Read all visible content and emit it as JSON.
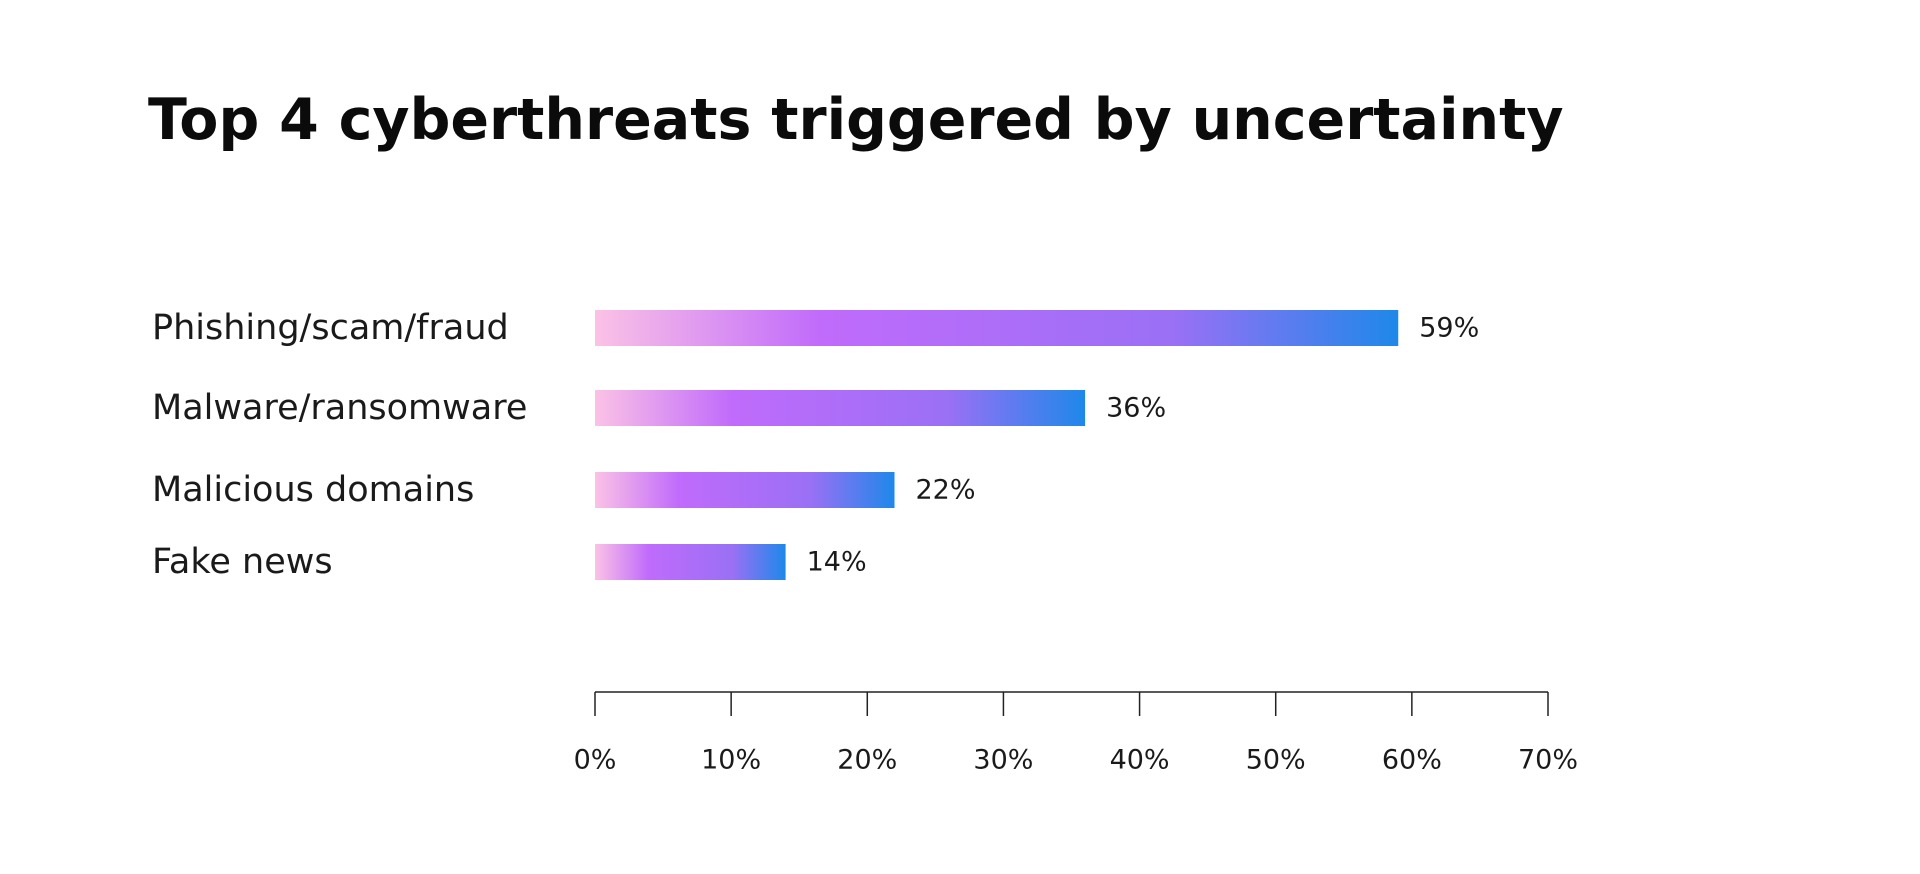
{
  "chart_data": {
    "type": "bar",
    "orientation": "horizontal",
    "title": "Top 4 cyberthreats triggered by uncertainty",
    "categories": [
      "Phishing/scam/fraud",
      "Malware/ransomware",
      "Malicious domains",
      "Fake news"
    ],
    "values": [
      59,
      36,
      22,
      14
    ],
    "value_labels": [
      "59%",
      "36%",
      "22%",
      "14%"
    ],
    "xlim": [
      0,
      70
    ],
    "xticks": [
      0,
      10,
      20,
      30,
      40,
      50,
      60,
      70
    ],
    "xtick_labels": [
      "0%",
      "10%",
      "20%",
      "30%",
      "40%",
      "50%",
      "60%",
      "70%"
    ],
    "xlabel": "",
    "ylabel": "",
    "grid": false,
    "legend": "none",
    "colors": {
      "gradient_start": "#fbc2e6",
      "gradient_mid": "#c06bfb",
      "gradient_mid2": "#9a70f5",
      "gradient_end": "#1e88ea",
      "axis": "#222222",
      "text": "#1a1a1a"
    }
  }
}
